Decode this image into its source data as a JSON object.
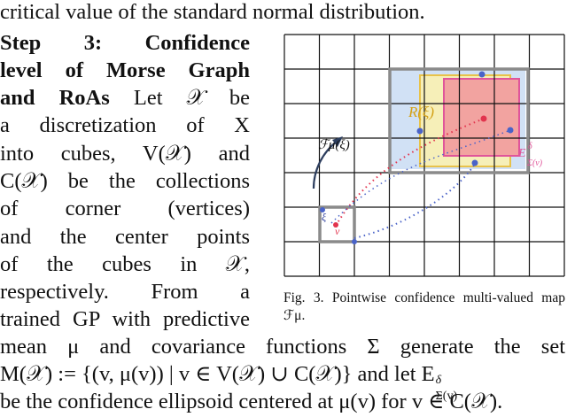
{
  "text": {
    "top_line": "critical value of the standard normal distribution.",
    "step_line1": "Step 3: Confidence",
    "step_line2": "level of Morse Graph",
    "step_line3_bold": "and RoAs",
    "step_line3_rest": "Let 𝒳 be",
    "left_lines": [
      "a discretization of X",
      "into cubes, V(𝒳) and",
      "C(𝒳) be the collections",
      "of corner (vertices)",
      "and the center points",
      "of the cubes in 𝒳,",
      "respectively. From a",
      "trained GP with predictive"
    ],
    "bottom_lines": [
      "mean μ and covariance functions Σ generate the set",
      "M(𝒳) := {(v, μ(v)) | v ∈ V(𝒳) ∪ C(𝒳)} and let E",
      "be the confidence ellipsoid centered at μ(v) for v ∈ C(𝒳)."
    ],
    "bottom_sup": "δ",
    "bottom_sub": "Σ(v)"
  },
  "figure": {
    "grid_cells": 8,
    "label_R": "R(ξ)",
    "label_F": "ℱμ(ξ)",
    "label_xi": "ξ",
    "label_v": "v",
    "label_E": "E",
    "label_E_sup": "δ",
    "label_E_sub": "Σ(v)",
    "colors": {
      "grid": "#111111",
      "blue_fill": "#c9dcf3",
      "yellow": "#e8c24a",
      "yellow_fill": "#f6efb8",
      "pink": "#e0559a",
      "red_fill": "#f2a3a0",
      "red_point": "#e2344e",
      "blue_point": "#4a63c8",
      "arrow": "#2d3e5e",
      "gray_box": "#8a8a8a"
    }
  },
  "caption": {
    "text": "Fig. 3.   Pointwise confidence multi-valued map ℱμ."
  }
}
